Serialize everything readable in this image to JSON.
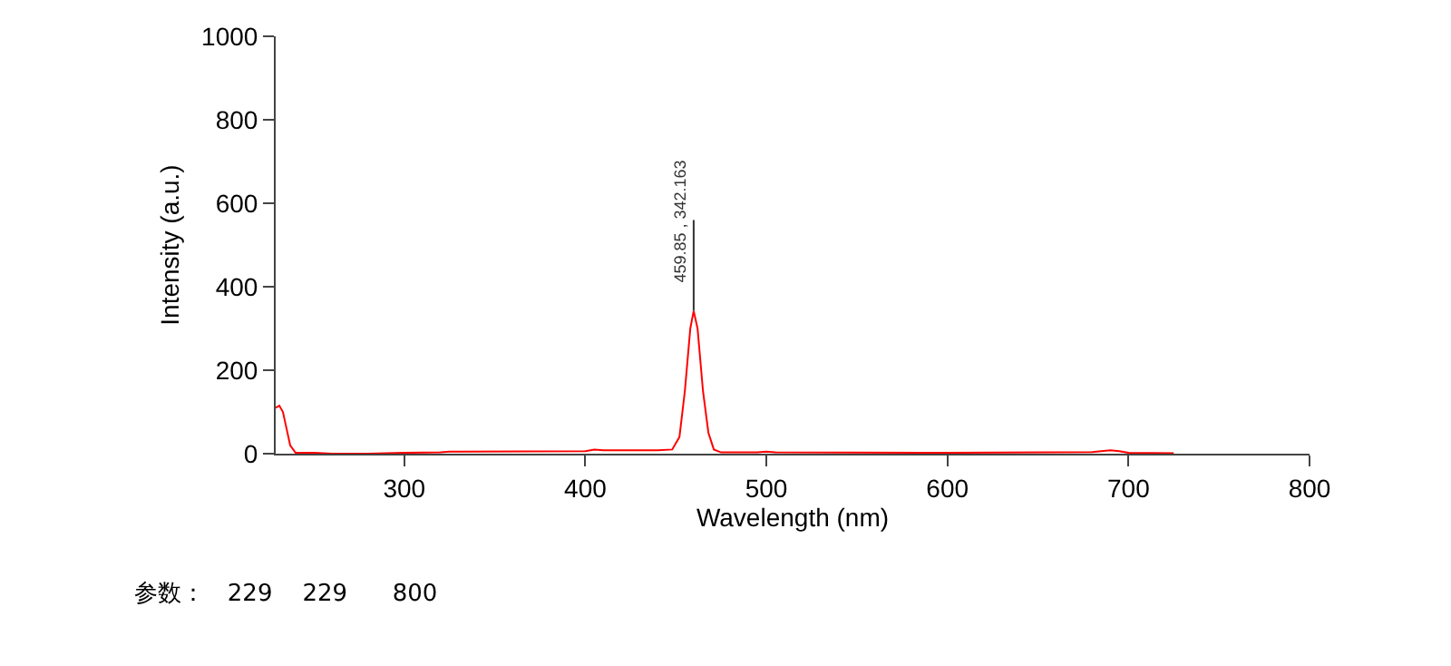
{
  "chart_data": {
    "type": "line",
    "xlabel": "Wavelength (nm)",
    "ylabel": "Intensity (a.u.)",
    "x": [
      229,
      231,
      233,
      235,
      237,
      240,
      250,
      260,
      280,
      300,
      320,
      325,
      400,
      405,
      410,
      440,
      448,
      452,
      455,
      458,
      459.85,
      462,
      465,
      468,
      471,
      475,
      495,
      500,
      505,
      600,
      680,
      690,
      695,
      700,
      725
    ],
    "series": [
      {
        "color": "#ff0000",
        "values": [
          110,
          115,
          100,
          60,
          20,
          2,
          2,
          0,
          0,
          2,
          3,
          5,
          6,
          10,
          8,
          8,
          10,
          40,
          150,
          300,
          342.163,
          300,
          150,
          50,
          10,
          3,
          3,
          5,
          3,
          2,
          4,
          8,
          6,
          2,
          1
        ]
      }
    ],
    "xlim": [
      229,
      800
    ],
    "xticks": [
      300,
      400,
      500,
      600,
      700,
      800
    ],
    "ylim": [
      0,
      1000
    ],
    "yticks": [
      0,
      200,
      400,
      600,
      800,
      1000
    ],
    "marker": "none",
    "line_style": "solid",
    "annotations": [
      {
        "text": "459.85 , 342.163",
        "x": 459.85,
        "y": 342.163
      },
      "参数：   229    229      800"
    ]
  }
}
